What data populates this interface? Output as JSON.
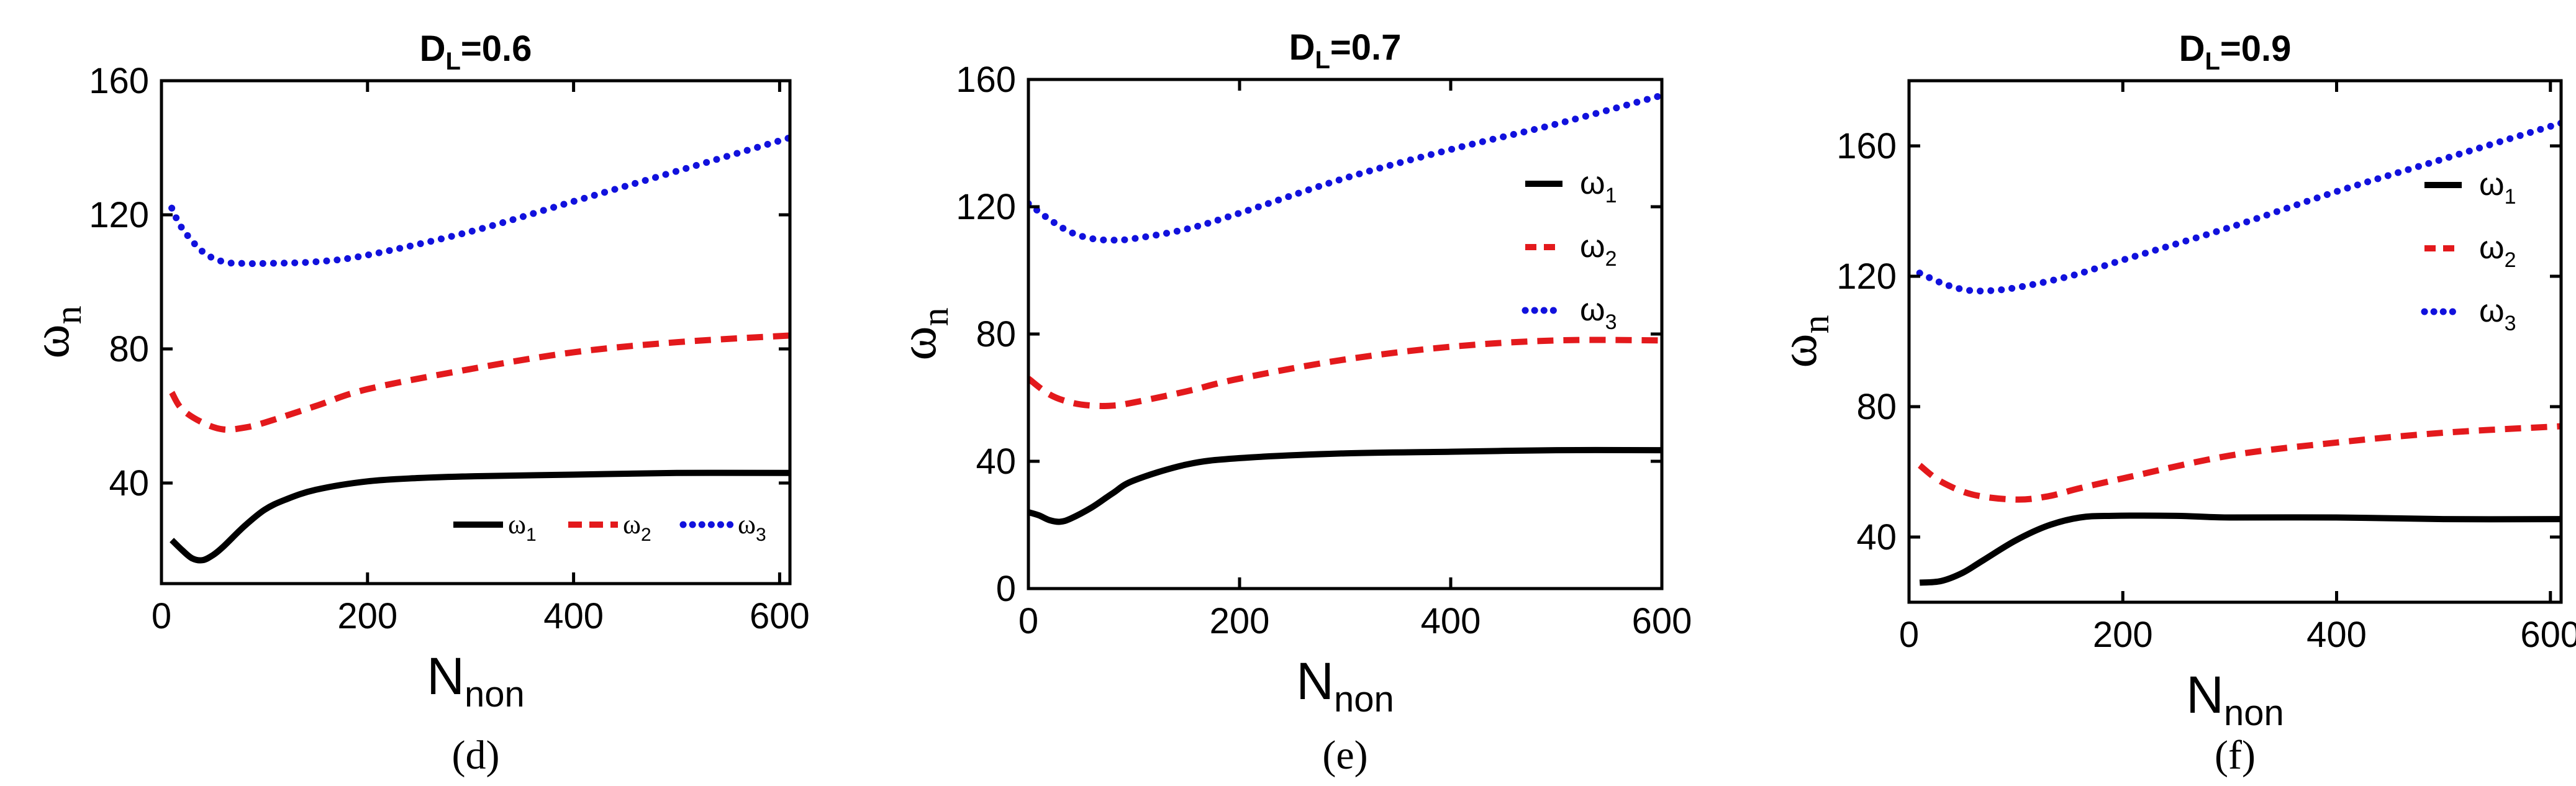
{
  "chart_data": [
    {
      "type": "line",
      "panel_label": "(d)",
      "title_main": "D",
      "title_sub": "L",
      "title_rest": "=0.6",
      "xlabel_main": "N",
      "xlabel_sub": "non",
      "ylabel_main": "ω",
      "ylabel_sub": "n",
      "xlim": [
        0,
        610
      ],
      "ylim": [
        10,
        160
      ],
      "xticks": [
        0,
        200,
        400,
        600
      ],
      "yticks": [
        40,
        80,
        120,
        160
      ],
      "legend_position": "bottom-right-horizontal",
      "series": [
        {
          "name": "ω",
          "name_sub": "1",
          "color": "#000000",
          "style": "solid",
          "x": [
            10,
            20,
            30,
            40,
            50,
            60,
            80,
            100,
            120,
            150,
            200,
            250,
            300,
            400,
            500,
            610
          ],
          "y": [
            23,
            20,
            17.5,
            17,
            18.5,
            21,
            27,
            32,
            35,
            38,
            40.5,
            41.5,
            42,
            42.5,
            43,
            43
          ]
        },
        {
          "name": "ω",
          "name_sub": "2",
          "color": "#e3191c",
          "style": "dashed",
          "x": [
            10,
            20,
            40,
            60,
            80,
            100,
            150,
            200,
            300,
            400,
            500,
            610
          ],
          "y": [
            67,
            62,
            58,
            56,
            56.5,
            58,
            63,
            68,
            74,
            79,
            82,
            84
          ]
        },
        {
          "name": "ω",
          "name_sub": "3",
          "color": "#1111dd",
          "style": "dotted",
          "x": [
            10,
            20,
            40,
            60,
            80,
            100,
            150,
            200,
            300,
            400,
            500,
            610
          ],
          "y": [
            122,
            116,
            109,
            106,
            105.5,
            105.5,
            106,
            108,
            115,
            124,
            133,
            143
          ]
        }
      ]
    },
    {
      "type": "line",
      "panel_label": "(e)",
      "title_main": "D",
      "title_sub": "L",
      "title_rest": "=0.7",
      "xlabel_main": "N",
      "xlabel_sub": "non",
      "ylabel_main": "ω",
      "ylabel_sub": "n",
      "xlim": [
        0,
        600
      ],
      "ylim": [
        0,
        160
      ],
      "xticks": [
        0,
        200,
        400,
        600
      ],
      "yticks": [
        0,
        40,
        80,
        120,
        160
      ],
      "legend_position": "top-right-vertical",
      "series": [
        {
          "name": "ω",
          "name_sub": "1",
          "color": "#000000",
          "style": "solid",
          "x": [
            0,
            10,
            20,
            30,
            40,
            60,
            80,
            100,
            150,
            200,
            300,
            400,
            500,
            600
          ],
          "y": [
            24,
            23,
            21.5,
            21,
            22,
            25.5,
            30,
            34,
            39,
            41,
            42.5,
            43,
            43.5,
            43.5
          ]
        },
        {
          "name": "ω",
          "name_sub": "2",
          "color": "#e3191c",
          "style": "dashed",
          "x": [
            0,
            20,
            40,
            60,
            80,
            100,
            150,
            200,
            300,
            400,
            500,
            600
          ],
          "y": [
            66,
            61,
            58.5,
            57.5,
            57.5,
            58.5,
            62,
            66,
            72,
            76,
            78,
            78
          ]
        },
        {
          "name": "ω",
          "name_sub": "3",
          "color": "#1111dd",
          "style": "dotted",
          "x": [
            0,
            20,
            40,
            60,
            80,
            100,
            150,
            200,
            300,
            400,
            500,
            600
          ],
          "y": [
            121,
            116,
            112,
            110,
            109.5,
            110,
            113,
            118,
            129,
            138,
            146,
            155
          ]
        }
      ]
    },
    {
      "type": "line",
      "panel_label": "(f)",
      "title_main": "D",
      "title_sub": "L",
      "title_rest": "=0.9",
      "xlabel_main": "N",
      "xlabel_sub": "non",
      "ylabel_main": "ω",
      "ylabel_sub": "n",
      "xlim": [
        0,
        610
      ],
      "ylim": [
        20,
        180
      ],
      "xticks": [
        0,
        200,
        400,
        600
      ],
      "yticks": [
        40,
        80,
        120,
        160
      ],
      "legend_position": "top-right-vertical",
      "series": [
        {
          "name": "ω",
          "name_sub": "1",
          "color": "#000000",
          "style": "solid",
          "x": [
            10,
            30,
            50,
            70,
            100,
            130,
            160,
            190,
            250,
            300,
            400,
            500,
            610
          ],
          "y": [
            26,
            26.5,
            29,
            33,
            39,
            43.5,
            46,
            46.5,
            46.5,
            46,
            46,
            45.5,
            45.5
          ]
        },
        {
          "name": "ω",
          "name_sub": "2",
          "color": "#e3191c",
          "style": "dashed",
          "x": [
            10,
            30,
            60,
            100,
            130,
            160,
            200,
            300,
            400,
            500,
            610
          ],
          "y": [
            62,
            57,
            53,
            51.5,
            52.5,
            55,
            58,
            65,
            69,
            72,
            74
          ]
        },
        {
          "name": "ω",
          "name_sub": "3",
          "color": "#1111dd",
          "style": "dotted",
          "x": [
            10,
            30,
            50,
            70,
            100,
            150,
            200,
            300,
            400,
            500,
            610
          ],
          "y": [
            121,
            118,
            116,
            115.5,
            116.5,
            120,
            125,
            135,
            146,
            156,
            167
          ]
        }
      ]
    }
  ]
}
